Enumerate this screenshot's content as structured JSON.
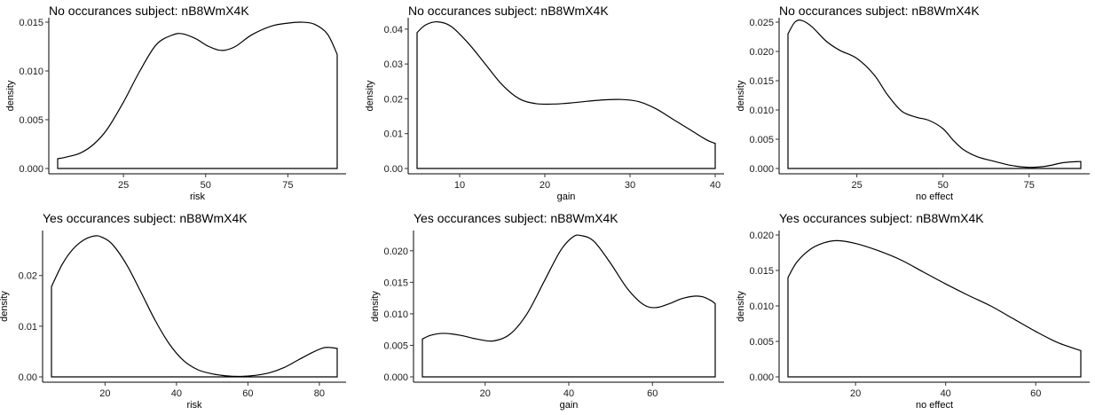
{
  "chart_data": [
    {
      "type": "area",
      "title": "No occurances subject:  nB8WmX4K",
      "xlabel": "risk",
      "ylabel": "density",
      "xlim": [
        5,
        90
      ],
      "ylim": [
        0,
        0.015
      ],
      "xticks": [
        25,
        50,
        75
      ],
      "yticks": [
        0.0,
        0.005,
        0.01,
        0.015
      ],
      "ytick_labels": [
        "0.000",
        "0.005",
        "0.010",
        "0.015"
      ],
      "grid": false,
      "x": [
        5,
        8,
        12,
        16,
        20,
        25,
        30,
        35,
        40,
        43,
        47,
        51,
        55,
        59,
        64,
        70,
        75,
        79,
        83,
        87,
        90
      ],
      "y": [
        0.001,
        0.0012,
        0.0016,
        0.0025,
        0.004,
        0.0068,
        0.01,
        0.0127,
        0.0137,
        0.0138,
        0.0133,
        0.0125,
        0.0121,
        0.0125,
        0.0137,
        0.0146,
        0.0149,
        0.015,
        0.0148,
        0.0138,
        0.0117
      ]
    },
    {
      "type": "area",
      "title": "No occurances subject:  nB8WmX4K",
      "xlabel": "gain",
      "ylabel": "density",
      "xlim": [
        5,
        40
      ],
      "ylim": [
        0,
        0.042
      ],
      "xticks": [
        10,
        20,
        30,
        40
      ],
      "yticks": [
        0.0,
        0.01,
        0.02,
        0.03,
        0.04
      ],
      "ytick_labels": [
        "0.00",
        "0.01",
        "0.02",
        "0.03",
        "0.04"
      ],
      "grid": false,
      "x": [
        5,
        6,
        7.4,
        9,
        11,
        13,
        15,
        17,
        19,
        21,
        23,
        25,
        27,
        29,
        31,
        33,
        35,
        37,
        39,
        40
      ],
      "y": [
        0.039,
        0.0412,
        0.0421,
        0.0408,
        0.036,
        0.03,
        0.024,
        0.02,
        0.0186,
        0.0185,
        0.0188,
        0.0193,
        0.0197,
        0.0198,
        0.0192,
        0.0172,
        0.0142,
        0.0112,
        0.0082,
        0.0072
      ]
    },
    {
      "type": "area",
      "title": "No occurances subject:  nB8WmX4K",
      "xlabel": "no effect",
      "ylabel": "density",
      "xlim": [
        5,
        90
      ],
      "ylim": [
        0,
        0.025
      ],
      "xticks": [
        25,
        50,
        75
      ],
      "yticks": [
        0.0,
        0.005,
        0.01,
        0.015,
        0.02,
        0.025
      ],
      "ytick_labels": [
        "0.000",
        "0.005",
        "0.010",
        "0.015",
        "0.020",
        "0.025"
      ],
      "grid": false,
      "x": [
        5,
        7,
        9,
        12,
        16,
        20,
        25,
        30,
        34,
        38,
        42,
        46,
        50,
        53,
        56,
        60,
        65,
        70,
        75,
        80,
        85,
        90
      ],
      "y": [
        0.023,
        0.025,
        0.0253,
        0.0242,
        0.0218,
        0.0202,
        0.0188,
        0.016,
        0.0125,
        0.0098,
        0.0088,
        0.0082,
        0.0068,
        0.0048,
        0.0032,
        0.002,
        0.0012,
        0.0005,
        0.0002,
        0.0004,
        0.001,
        0.0012
      ]
    },
    {
      "type": "area",
      "title": "Yes occurances subject:  nB8WmX4K",
      "xlabel": "risk",
      "ylabel": "density",
      "xlim": [
        5,
        85
      ],
      "ylim": [
        0,
        0.028
      ],
      "xticks": [
        20,
        40,
        60,
        80
      ],
      "yticks": [
        0.0,
        0.01,
        0.02
      ],
      "ytick_labels": [
        "0.00",
        "0.01",
        "0.02"
      ],
      "grid": false,
      "x": [
        5,
        8,
        11,
        14,
        17,
        19,
        22,
        26,
        30,
        34,
        38,
        42,
        46,
        50,
        54,
        58,
        62,
        66,
        70,
        74,
        78,
        81,
        83,
        85
      ],
      "y": [
        0.0178,
        0.0222,
        0.0252,
        0.027,
        0.0278,
        0.0276,
        0.0262,
        0.0222,
        0.0168,
        0.0112,
        0.0065,
        0.0032,
        0.0014,
        0.0006,
        0.0002,
        0.0001,
        0.0003,
        0.0008,
        0.0018,
        0.0033,
        0.0048,
        0.0057,
        0.0058,
        0.0056
      ]
    },
    {
      "type": "area",
      "title": "Yes occurances subject:  nB8WmX4K",
      "xlabel": "gain",
      "ylabel": "density",
      "xlim": [
        5,
        75
      ],
      "ylim": [
        0,
        0.0225
      ],
      "xticks": [
        20,
        40,
        60
      ],
      "yticks": [
        0.0,
        0.005,
        0.01,
        0.015,
        0.02
      ],
      "ytick_labels": [
        "0.000",
        "0.005",
        "0.010",
        "0.015",
        "0.020"
      ],
      "grid": false,
      "x": [
        5,
        7,
        10,
        14,
        18,
        22,
        26,
        30,
        34,
        38,
        41,
        43,
        46,
        50,
        54,
        58,
        61,
        64,
        67,
        70,
        72,
        74,
        75
      ],
      "y": [
        0.006,
        0.0066,
        0.0069,
        0.0066,
        0.006,
        0.0057,
        0.0068,
        0.01,
        0.015,
        0.02,
        0.0222,
        0.0224,
        0.0215,
        0.018,
        0.014,
        0.0114,
        0.011,
        0.0116,
        0.0124,
        0.0128,
        0.0127,
        0.0121,
        0.0116
      ]
    },
    {
      "type": "area",
      "title": "Yes occurances subject:  nB8WmX4K",
      "xlabel": "no effect",
      "ylabel": "density",
      "xlim": [
        5,
        70
      ],
      "ylim": [
        0,
        0.02
      ],
      "xticks": [
        20,
        40,
        60
      ],
      "yticks": [
        0.0,
        0.005,
        0.01,
        0.015,
        0.02
      ],
      "ytick_labels": [
        "0.000",
        "0.005",
        "0.010",
        "0.015",
        "0.020"
      ],
      "grid": false,
      "x": [
        5,
        7,
        10,
        13,
        16,
        20,
        25,
        30,
        35,
        40,
        45,
        50,
        55,
        60,
        65,
        70
      ],
      "y": [
        0.014,
        0.0162,
        0.018,
        0.0189,
        0.0192,
        0.0188,
        0.0178,
        0.0165,
        0.0148,
        0.0131,
        0.0115,
        0.01,
        0.0082,
        0.0064,
        0.0048,
        0.0037
      ]
    }
  ]
}
